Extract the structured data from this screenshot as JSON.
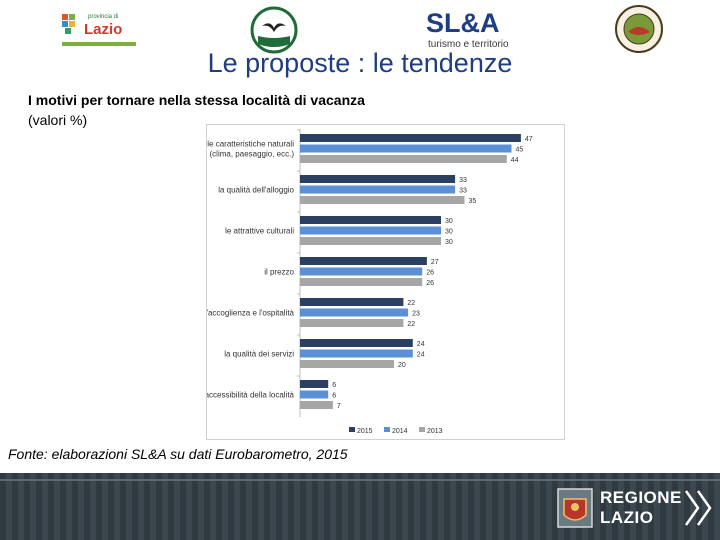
{
  "header": {
    "lazio_logo_text": "Lazio",
    "lazio_logo_small": "provincia di",
    "sla_logo": "SL&A",
    "sla_tagline": "turismo e territorio"
  },
  "title": "Le proposte : le tendenze",
  "subtitle": {
    "line1": "I motivi per tornare nella stessa località di vacanza",
    "line2": "(valori %)"
  },
  "source": "Fonte: elaborazioni SL&A su dati Eurobarometro, 2015",
  "footer": {
    "brand_line1": "REGIONE",
    "brand_line2": "LAZIO"
  },
  "colors": {
    "title": "#1f3e80",
    "series_2015": "#2b3f61",
    "series_2014": "#5b8fd6",
    "series_2013": "#a6a6a6"
  },
  "chart_data": {
    "type": "bar",
    "orientation": "horizontal",
    "categories": [
      "le caratteristiche naturali (clima, paesaggio, ecc.)",
      "la qualità dell'alloggio",
      "le attrattive culturali",
      "il prezzo",
      "l'accoglienza e l'ospitalità",
      "la qualità dei servizi",
      "accessibilità della località"
    ],
    "series": [
      {
        "name": "2015",
        "values": [
          47,
          33,
          30,
          27,
          22,
          24,
          6
        ]
      },
      {
        "name": "2014",
        "values": [
          45,
          33,
          30,
          26,
          23,
          24,
          6
        ]
      },
      {
        "name": "2013",
        "values": [
          44,
          35,
          30,
          26,
          22,
          20,
          7
        ]
      }
    ],
    "xlim": [
      0,
      50
    ],
    "legend": "bottom",
    "grid": false,
    "data_labels": true
  }
}
